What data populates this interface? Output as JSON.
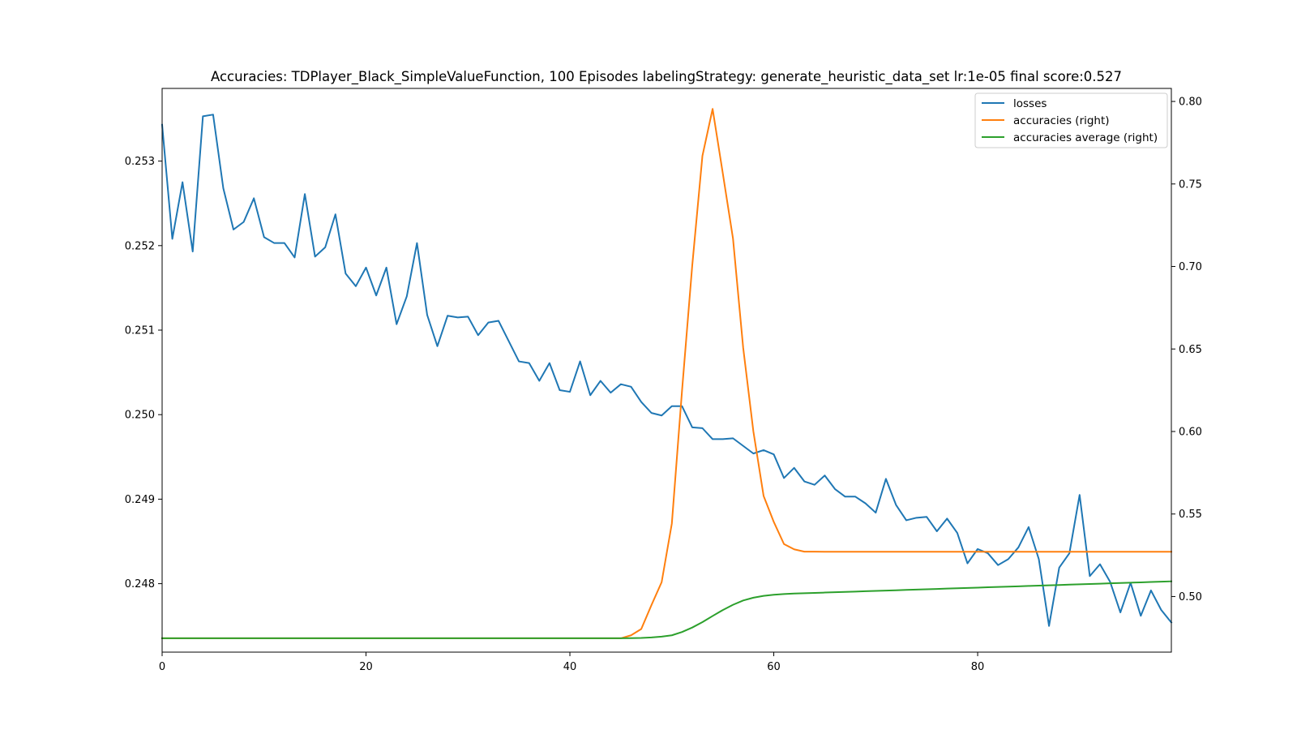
{
  "chart_data": {
    "type": "line",
    "title": "Accuracies: TDPlayer_Black_SimpleValueFunction, 100 Episodes labelingStrategy: generate_heuristic_data_set lr:1e-05 final score:0.527",
    "xlabel": "",
    "ylabel": "",
    "xlim": [
      0,
      99
    ],
    "ylim_left": [
      0.24719,
      0.25386
    ],
    "ylim_right": [
      0.4663,
      0.8079
    ],
    "x_ticks": [
      0,
      20,
      40,
      60,
      80
    ],
    "x_tick_labels": [
      "0",
      "20",
      "40",
      "60",
      "80"
    ],
    "y_left_ticks": [
      0.248,
      0.249,
      0.25,
      0.251,
      0.252,
      0.253
    ],
    "y_left_tick_labels": [
      "0.248",
      "0.249",
      "0.250",
      "0.251",
      "0.252",
      "0.253"
    ],
    "y_right_ticks": [
      0.5,
      0.55,
      0.6,
      0.65,
      0.7,
      0.75,
      0.8
    ],
    "y_right_tick_labels": [
      "0.50",
      "0.55",
      "0.60",
      "0.65",
      "0.70",
      "0.75",
      "0.80"
    ],
    "grid": false,
    "legend_position": "top-right",
    "series": [
      {
        "name": "losses",
        "axis": "left",
        "color": "#1f77b4",
        "values": [
          0.25343,
          0.25208,
          0.25275,
          0.25193,
          0.25353,
          0.25355,
          0.25268,
          0.25219,
          0.25228,
          0.25256,
          0.2521,
          0.25203,
          0.25203,
          0.25186,
          0.25261,
          0.25187,
          0.25198,
          0.25237,
          0.25167,
          0.25152,
          0.25174,
          0.25141,
          0.25174,
          0.25107,
          0.2514,
          0.25203,
          0.25118,
          0.25081,
          0.25117,
          0.25115,
          0.25116,
          0.25094,
          0.25109,
          0.25111,
          0.25087,
          0.25063,
          0.25061,
          0.2504,
          0.25061,
          0.25029,
          0.25027,
          0.25063,
          0.25023,
          0.2504,
          0.25026,
          0.25036,
          0.25033,
          0.25015,
          0.25002,
          0.24999,
          0.2501,
          0.2501,
          0.24985,
          0.24984,
          0.24971,
          0.24971,
          0.24972,
          0.24963,
          0.24954,
          0.24958,
          0.24953,
          0.24925,
          0.24937,
          0.24921,
          0.24917,
          0.24928,
          0.24912,
          0.24903,
          0.24903,
          0.24895,
          0.24884,
          0.24924,
          0.24893,
          0.24875,
          0.24878,
          0.24879,
          0.24862,
          0.24877,
          0.2486,
          0.24824,
          0.24841,
          0.24836,
          0.24822,
          0.24829,
          0.24843,
          0.24867,
          0.24829,
          0.2475,
          0.24819,
          0.24836,
          0.24905,
          0.24809,
          0.24823,
          0.24802,
          0.24766,
          0.24801,
          0.24762,
          0.24792,
          0.24769,
          0.24754
        ]
      },
      {
        "name": "accuracies (right)",
        "axis": "right",
        "color": "#ff7f0e",
        "values": [
          0.4747,
          0.4747,
          0.4747,
          0.4747,
          0.4747,
          0.4747,
          0.4747,
          0.4747,
          0.4747,
          0.4747,
          0.4747,
          0.4747,
          0.4747,
          0.4747,
          0.4747,
          0.4747,
          0.4747,
          0.4747,
          0.4747,
          0.4747,
          0.4747,
          0.4747,
          0.4747,
          0.4747,
          0.4747,
          0.4747,
          0.4747,
          0.4747,
          0.4747,
          0.4747,
          0.4747,
          0.4747,
          0.4747,
          0.4747,
          0.4747,
          0.4747,
          0.4747,
          0.4747,
          0.4747,
          0.4747,
          0.4747,
          0.4747,
          0.4747,
          0.4747,
          0.4747,
          0.4747,
          0.4765,
          0.4803,
          0.4948,
          0.5087,
          0.5442,
          0.6247,
          0.7005,
          0.767,
          0.7955,
          0.7564,
          0.7169,
          0.6506,
          0.6,
          0.561,
          0.5452,
          0.5318,
          0.5286,
          0.5272,
          0.5272,
          0.5271,
          0.5271,
          0.5271,
          0.5271,
          0.5271,
          0.5271,
          0.5271,
          0.5271,
          0.5271,
          0.5271,
          0.5271,
          0.5271,
          0.5271,
          0.5271,
          0.5271,
          0.5271,
          0.5271,
          0.5271,
          0.5271,
          0.5271,
          0.5271,
          0.5271,
          0.5271,
          0.5271,
          0.5271,
          0.5271,
          0.5271,
          0.5271,
          0.5271,
          0.5271,
          0.5271,
          0.5271,
          0.5271,
          0.5271,
          0.5271
        ]
      },
      {
        "name": "accuracies average (right)",
        "axis": "right",
        "color": "#2ca02c",
        "values": [
          0.4747,
          0.4747,
          0.4747,
          0.4747,
          0.4747,
          0.4747,
          0.4747,
          0.4747,
          0.4747,
          0.4747,
          0.4747,
          0.4747,
          0.4747,
          0.4747,
          0.4747,
          0.4747,
          0.4747,
          0.4747,
          0.4747,
          0.4747,
          0.4747,
          0.4747,
          0.4747,
          0.4747,
          0.4747,
          0.4747,
          0.4747,
          0.4747,
          0.4747,
          0.4747,
          0.4747,
          0.4747,
          0.4747,
          0.4747,
          0.4747,
          0.4747,
          0.4747,
          0.4747,
          0.4747,
          0.4747,
          0.4747,
          0.4747,
          0.4747,
          0.4747,
          0.4747,
          0.4747,
          0.4748,
          0.4749,
          0.4752,
          0.4757,
          0.4765,
          0.4785,
          0.4812,
          0.4845,
          0.4882,
          0.4918,
          0.495,
          0.4976,
          0.4993,
          0.5004,
          0.5011,
          0.5015,
          0.5018,
          0.502,
          0.5022,
          0.5024,
          0.5026,
          0.5028,
          0.503,
          0.5032,
          0.5034,
          0.5036,
          0.5038,
          0.504,
          0.5042,
          0.5044,
          0.5046,
          0.5048,
          0.505,
          0.5052,
          0.5054,
          0.5056,
          0.5058,
          0.506,
          0.5062,
          0.5064,
          0.5066,
          0.5068,
          0.507,
          0.5072,
          0.5074,
          0.5076,
          0.5078,
          0.508,
          0.5082,
          0.5084,
          0.5086,
          0.5088,
          0.509,
          0.5092
        ]
      }
    ]
  }
}
